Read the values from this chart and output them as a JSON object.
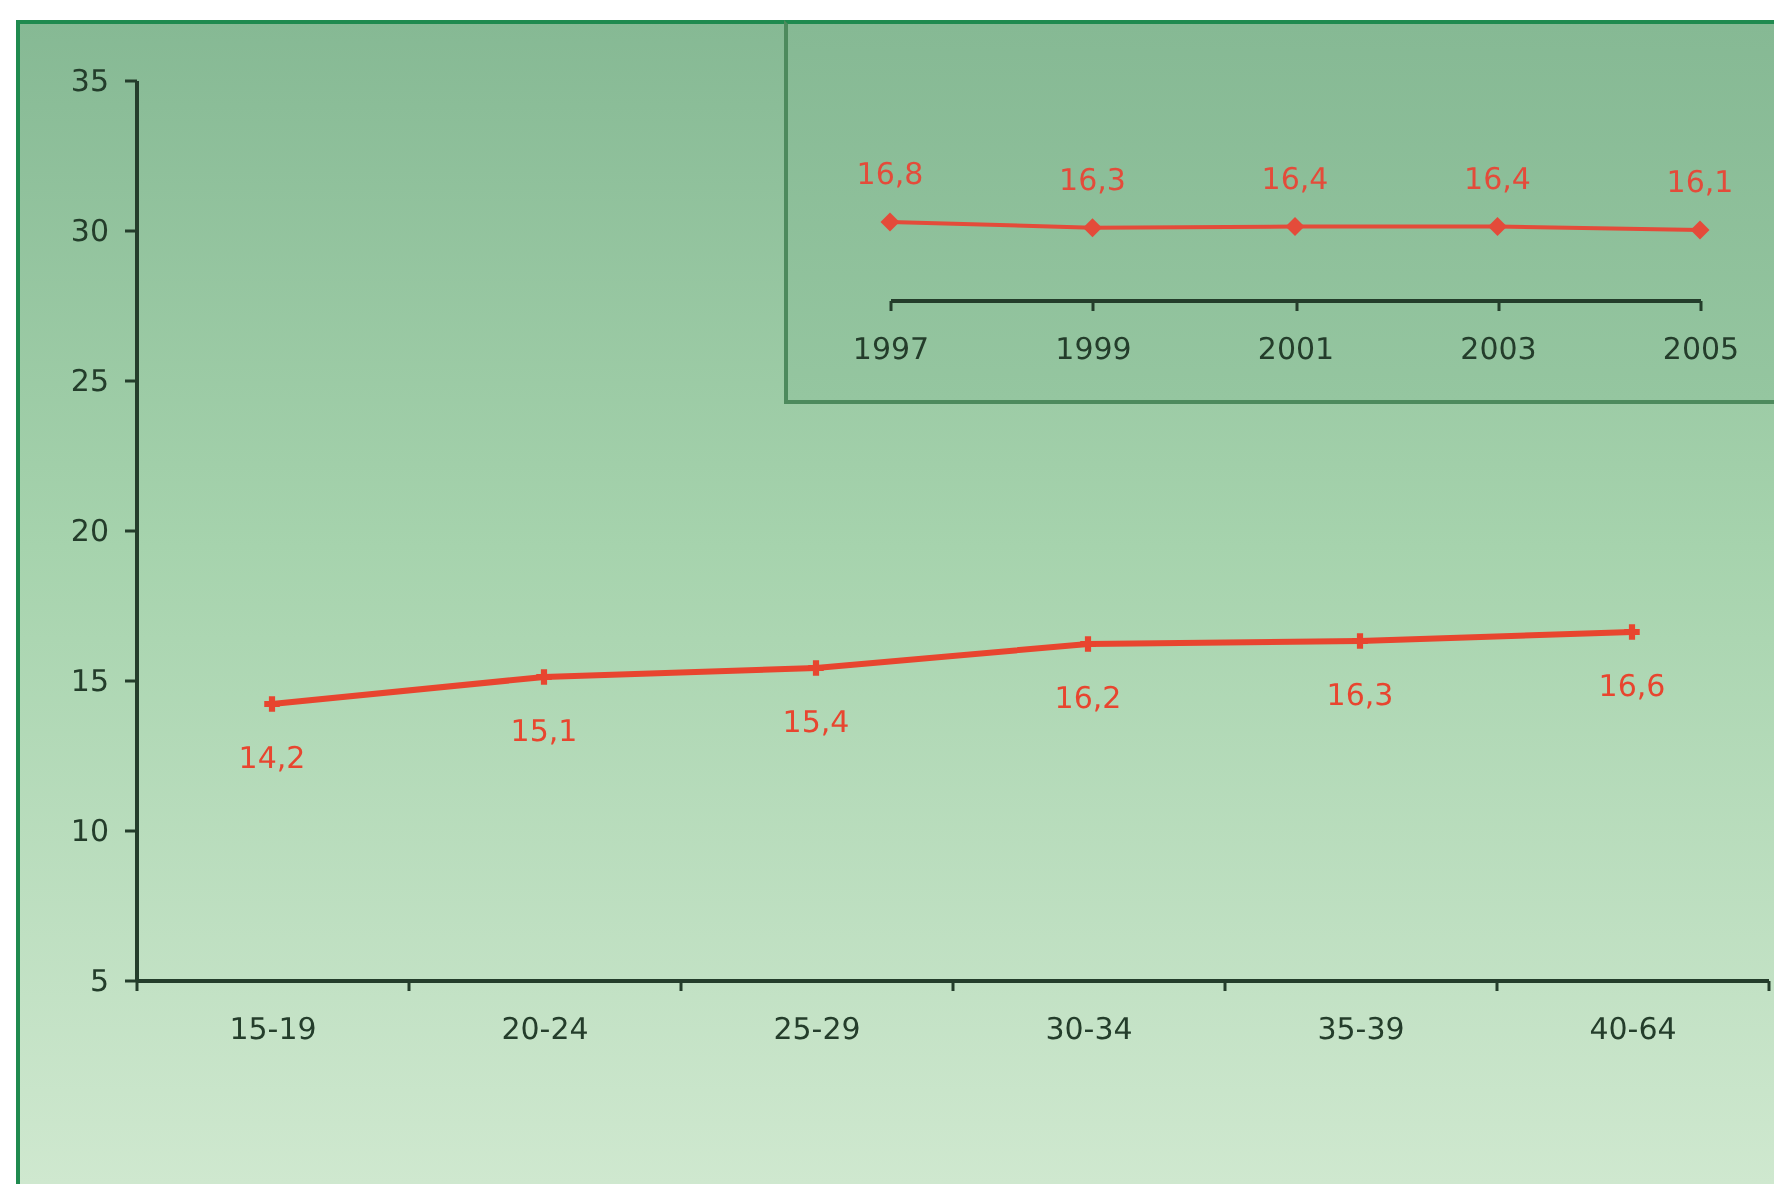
{
  "chart_data": [
    {
      "type": "line",
      "categories": [
        "15-19",
        "20-24",
        "25-29",
        "30-34",
        "35-39",
        "40-64"
      ],
      "series": [
        {
          "color": "#e8452f",
          "values": [
            14.2,
            15.1,
            15.4,
            16.2,
            16.3,
            16.6
          ],
          "value_labels": [
            "14,2",
            "15,1",
            "15,4",
            "16,2",
            "16,3",
            "16,6"
          ]
        }
      ],
      "ylim": [
        5,
        35
      ],
      "yticks": [
        5,
        10,
        15,
        20,
        25,
        30,
        35
      ],
      "marker": "cross",
      "line_style": "solid"
    },
    {
      "type": "line",
      "categories": [
        "1997",
        "1999",
        "2001",
        "2003",
        "2005"
      ],
      "series": [
        {
          "color": "#e44b3a",
          "values": [
            16.8,
            16.3,
            16.4,
            16.4,
            16.1
          ],
          "value_labels": [
            "16,8",
            "16,3",
            "16,4",
            "16,4",
            "16,1"
          ]
        }
      ],
      "tick_labels": "x",
      "marker": "diamond",
      "line_style": "solid"
    }
  ]
}
